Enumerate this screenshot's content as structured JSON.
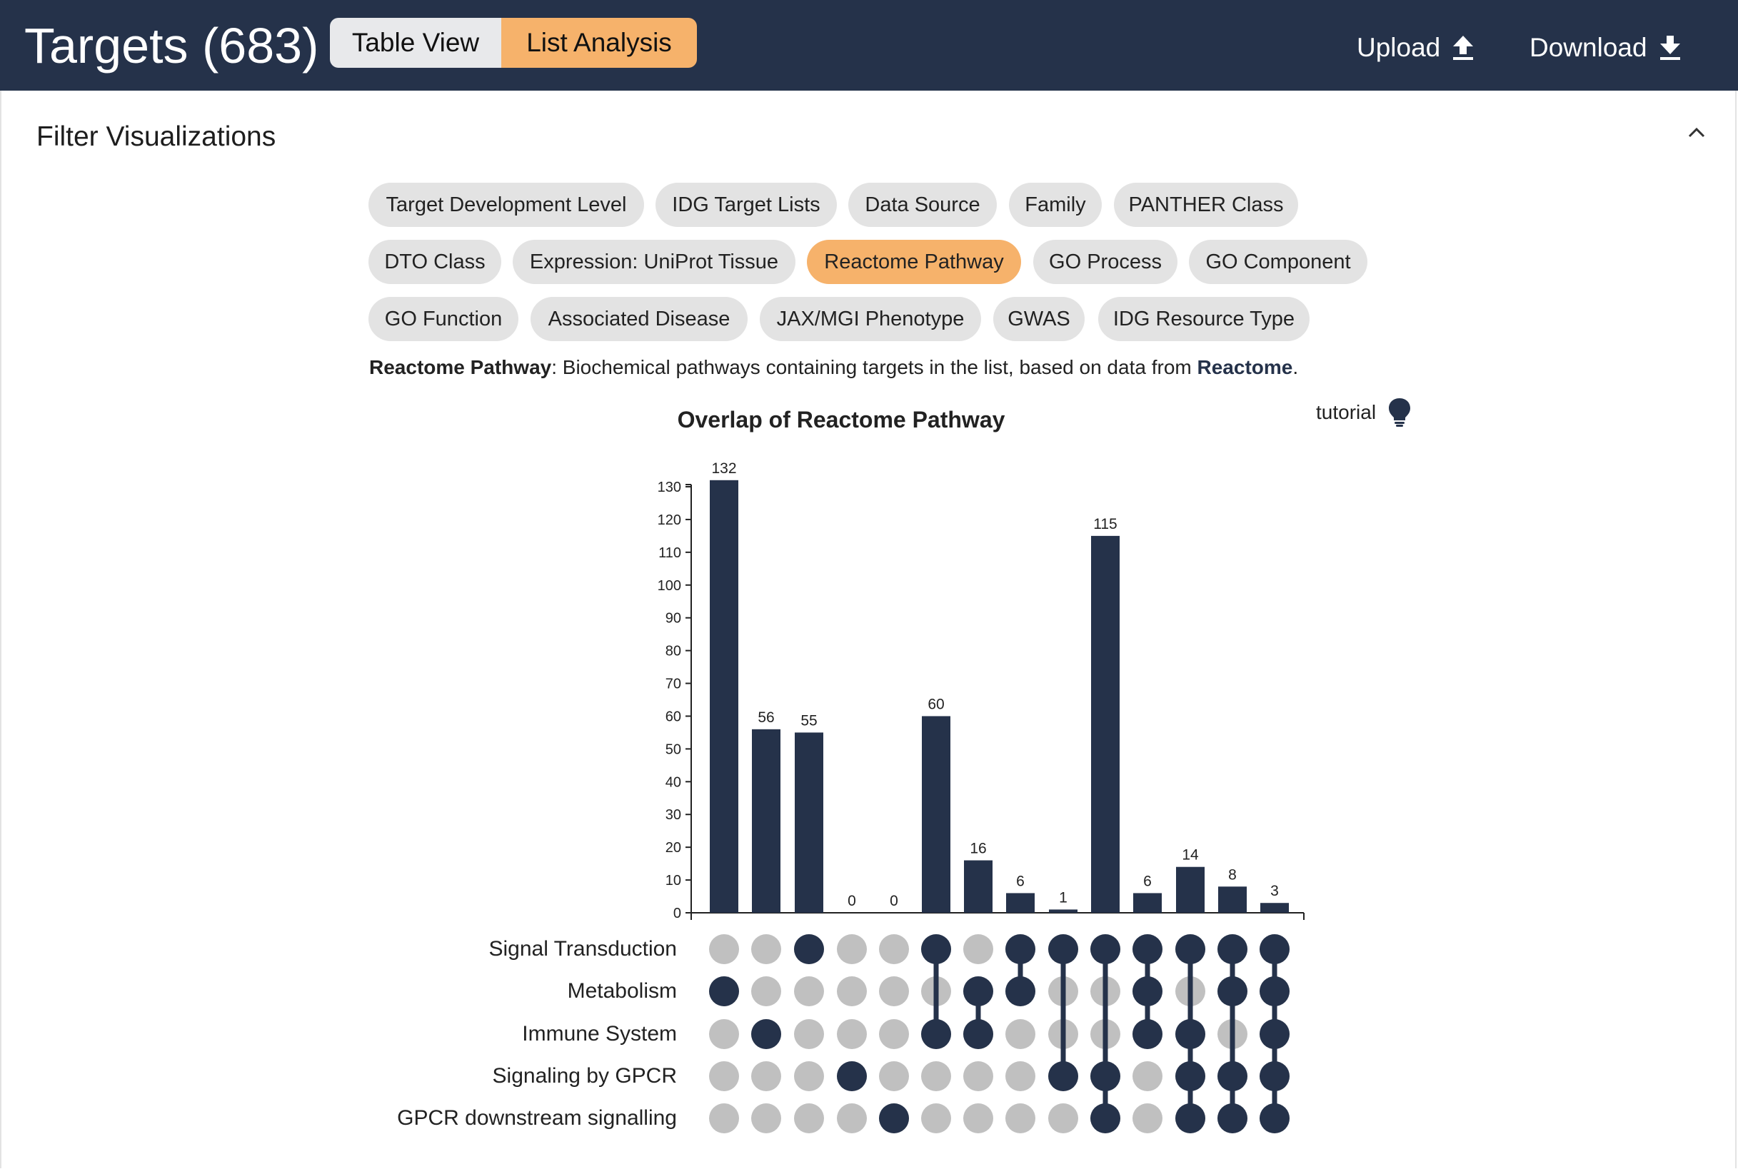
{
  "header": {
    "title": "Targets (683)",
    "view_toggle": {
      "table_view": "Table View",
      "list_analysis": "List Analysis",
      "active": "List Analysis"
    },
    "upload_label": "Upload",
    "download_label": "Download",
    "upload_icon": "upload-arrow-icon",
    "download_icon": "download-arrow-icon",
    "background_color": "#25324a",
    "accent_color": "#f6b26b"
  },
  "filter_panel": {
    "title": "Filter Visualizations",
    "collapse_icon": "chevron-up-icon",
    "chips": [
      "Target Development Level",
      "IDG Target Lists",
      "Data Source",
      "Family",
      "PANTHER Class",
      "DTO Class",
      "Expression: UniProt Tissue",
      "Reactome Pathway",
      "GO Process",
      "GO Component",
      "GO Function",
      "Associated Disease",
      "JAX/MGI Phenotype",
      "GWAS",
      "IDG Resource Type"
    ],
    "active_chip": "Reactome Pathway",
    "description": {
      "label": "Reactome Pathway",
      "text": ": Biochemical pathways containing targets in the list, based on data from ",
      "link": "Reactome",
      "end": "."
    },
    "tutorial_label": "tutorial",
    "tutorial_icon": "lightbulb-icon"
  },
  "chart_data": {
    "type": "bar",
    "title": "Overlap of Reactome Pathway",
    "ylim": [
      0,
      130
    ],
    "y_ticks": [
      0,
      10,
      20,
      30,
      40,
      50,
      60,
      70,
      80,
      90,
      100,
      110,
      120,
      130
    ],
    "values": [
      132,
      56,
      55,
      0,
      0,
      60,
      16,
      6,
      1,
      115,
      6,
      14,
      8,
      3
    ],
    "sets": [
      "Signal Transduction",
      "Metabolism",
      "Immune System",
      "Signaling by GPCR",
      "GPCR downstream signalling"
    ],
    "memberships": [
      [
        1
      ],
      [
        2
      ],
      [
        0
      ],
      [
        3
      ],
      [
        4
      ],
      [
        0,
        2
      ],
      [
        1,
        2
      ],
      [
        0,
        1
      ],
      [
        0,
        3
      ],
      [
        0,
        3,
        4
      ],
      [
        0,
        1,
        2
      ],
      [
        0,
        2,
        3,
        4
      ],
      [
        0,
        1,
        3,
        4
      ],
      [
        0,
        1,
        2,
        3,
        4
      ]
    ],
    "bar_color": "#25324a",
    "inactive_dot_color": "#c0c0c0"
  }
}
